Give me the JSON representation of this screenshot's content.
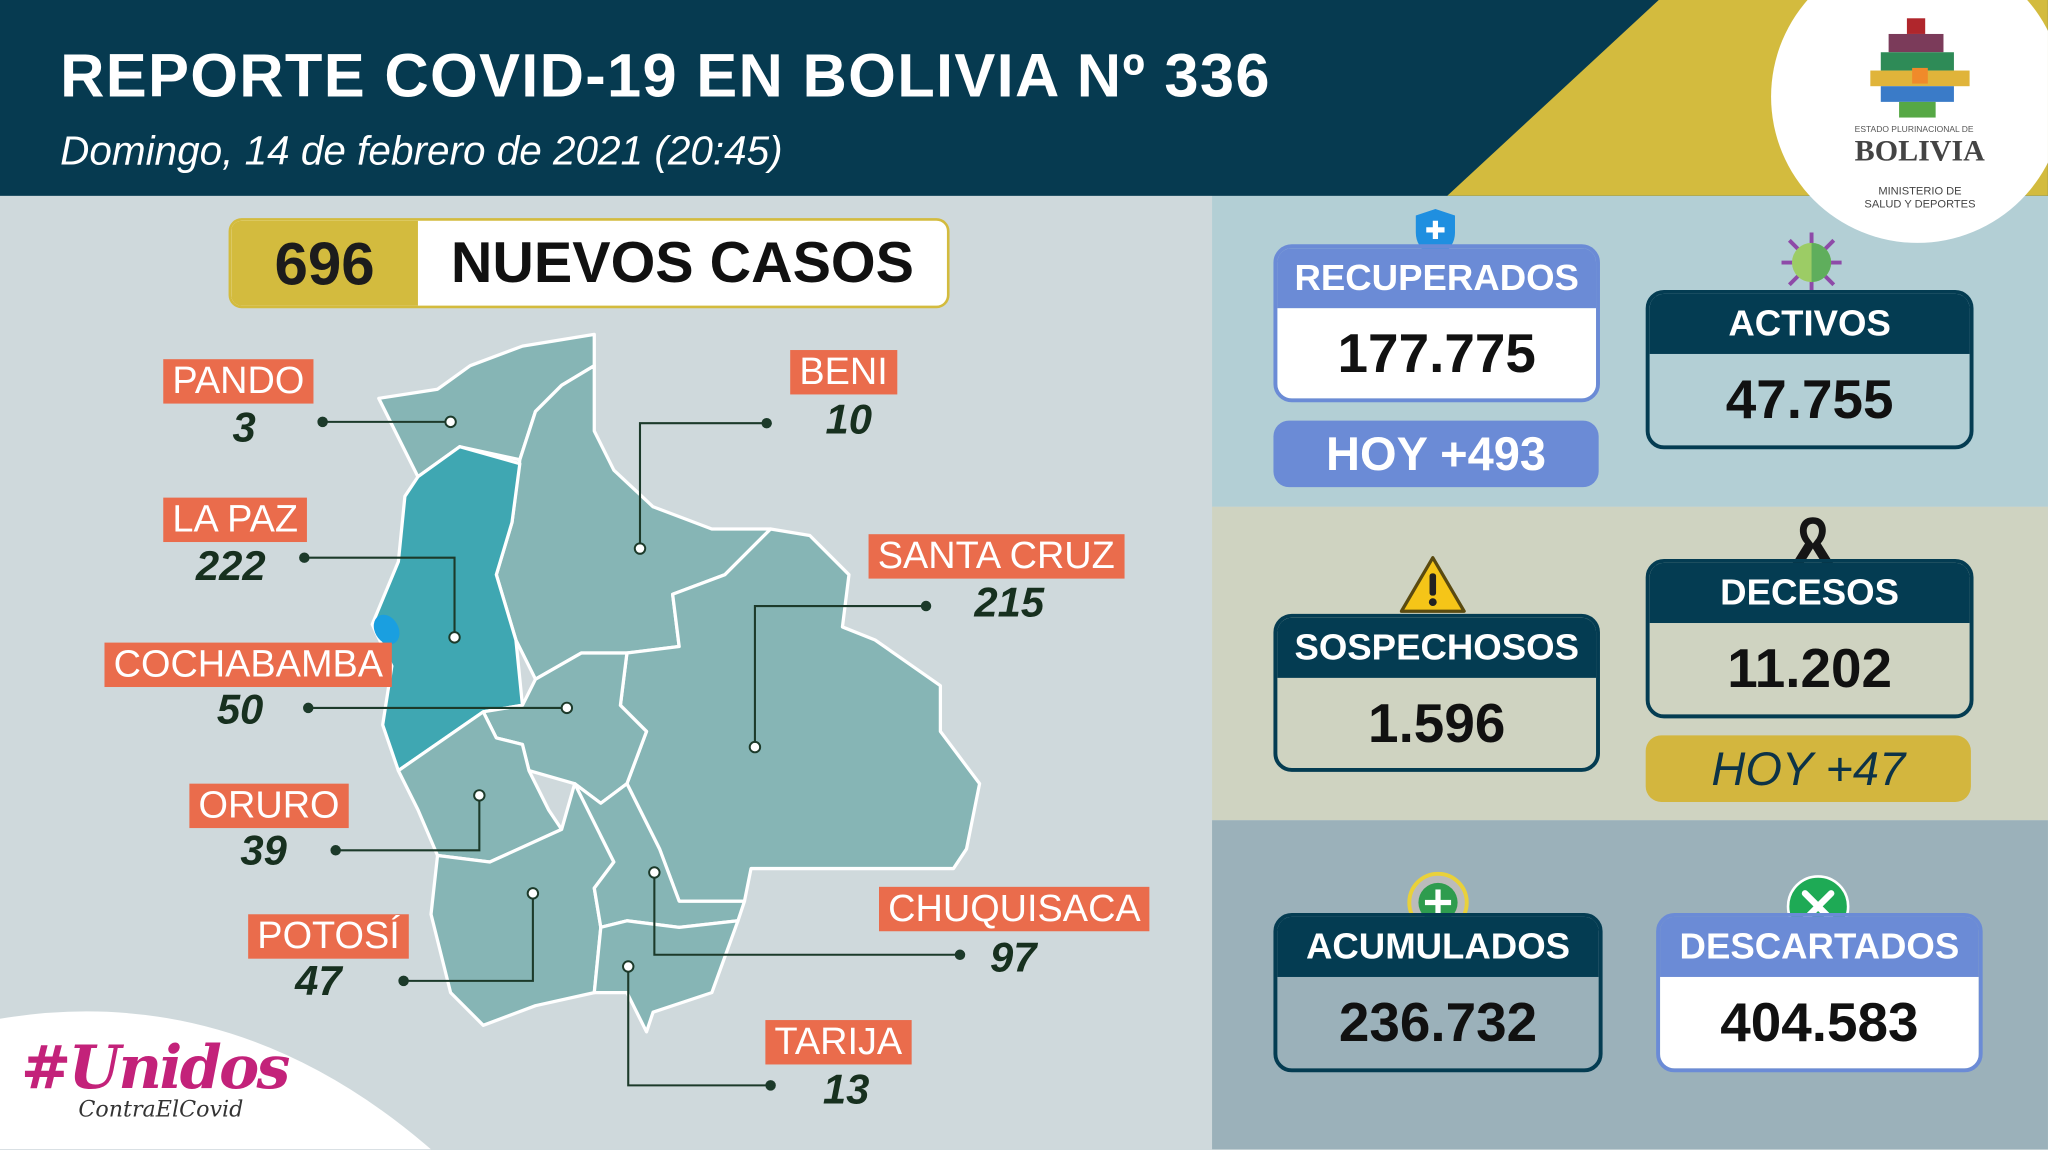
{
  "header": {
    "title": "REPORTE COVID-19 EN BOLIVIA Nº 336",
    "subtitle": "Domingo, 14 de febrero de 2021 (20:45)"
  },
  "logo": {
    "line1": "ESTADO PLURINACIONAL DE",
    "line2": "BOLIVIA",
    "line3": "MINISTERIO DE",
    "line4": "SALUD Y DEPORTES"
  },
  "new_cases": {
    "value": "696",
    "label": "NUEVOS CASOS"
  },
  "departments": [
    {
      "name": "PANDO",
      "value": "3"
    },
    {
      "name": "BENI",
      "value": "10"
    },
    {
      "name": "LA PAZ",
      "value": "222"
    },
    {
      "name": "SANTA CRUZ",
      "value": "215"
    },
    {
      "name": "COCHABAMBA",
      "value": "50"
    },
    {
      "name": "ORURO",
      "value": "39"
    },
    {
      "name": "POTOSÍ",
      "value": "47"
    },
    {
      "name": "CHUQUISACA",
      "value": "97"
    },
    {
      "name": "TARIJA",
      "value": "13"
    }
  ],
  "stats": {
    "recuperados": {
      "label": "RECUPERADOS",
      "value": "177.775",
      "today": "HOY +493"
    },
    "activos": {
      "label": "ACTIVOS",
      "value": "47.755"
    },
    "sospechosos": {
      "label": "SOSPECHOSOS",
      "value": "1.596"
    },
    "decesos": {
      "label": "DECESOS",
      "value": "11.202",
      "today": "HOY +47"
    },
    "acumulados": {
      "label": "ACUMULADOS",
      "value": "236.732"
    },
    "descartados": {
      "label": "DESCARTADOS",
      "value": "404.583"
    }
  },
  "campaign": {
    "hashtag": "#Unidos",
    "sub": "ContraElCovid"
  },
  "colors": {
    "header": "#063a50",
    "accent_yellow": "#d3bb3e",
    "label_orange": "#ea6c4c",
    "map_region": "#86b5b5",
    "map_highlight": "#3fa7b2",
    "card_blue": "#6b8bd6",
    "card_dark": "#043c52"
  }
}
